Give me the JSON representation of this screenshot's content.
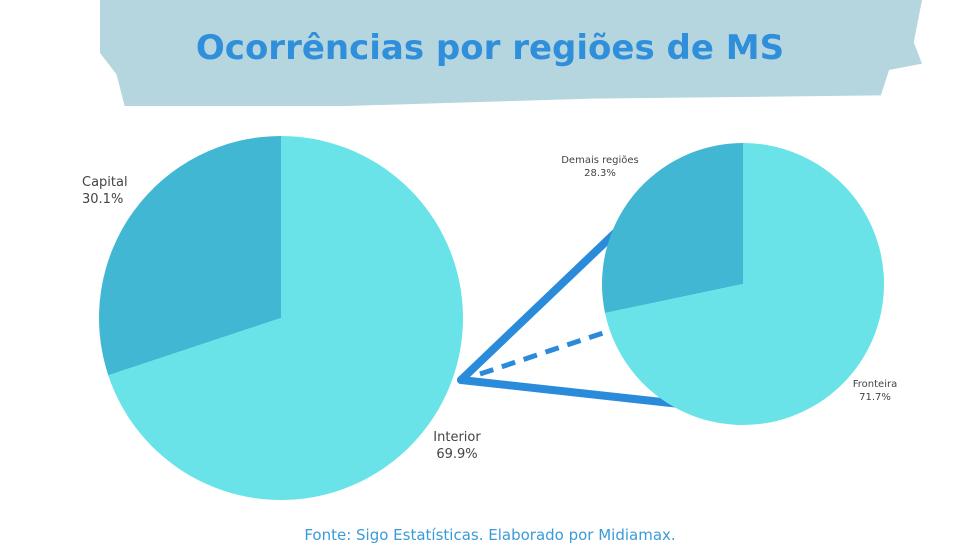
{
  "chart_data": [
    {
      "type": "pie",
      "title": "Ocorrências por regiões de MS",
      "labels": [
        "Capital",
        "Interior"
      ],
      "values": [
        30.1,
        69.9
      ],
      "value_labels": [
        "30.1%",
        "69.9%"
      ],
      "colors": [
        "#42b7d4",
        "#69e3e7"
      ]
    },
    {
      "type": "pie",
      "labels": [
        "Demais regiões",
        "Fronteira"
      ],
      "values": [
        28.3,
        71.7
      ],
      "value_labels": [
        "28.3%",
        "71.7%"
      ],
      "colors": [
        "#42b7d4",
        "#69e3e7"
      ],
      "breakdown_of": "Interior"
    }
  ],
  "title": "Ocorrências por regiões de MS",
  "source": "Fonte: Sigo Estatísticas. Elaborado por Midiamax.",
  "connector_color": "#2b8bdb"
}
